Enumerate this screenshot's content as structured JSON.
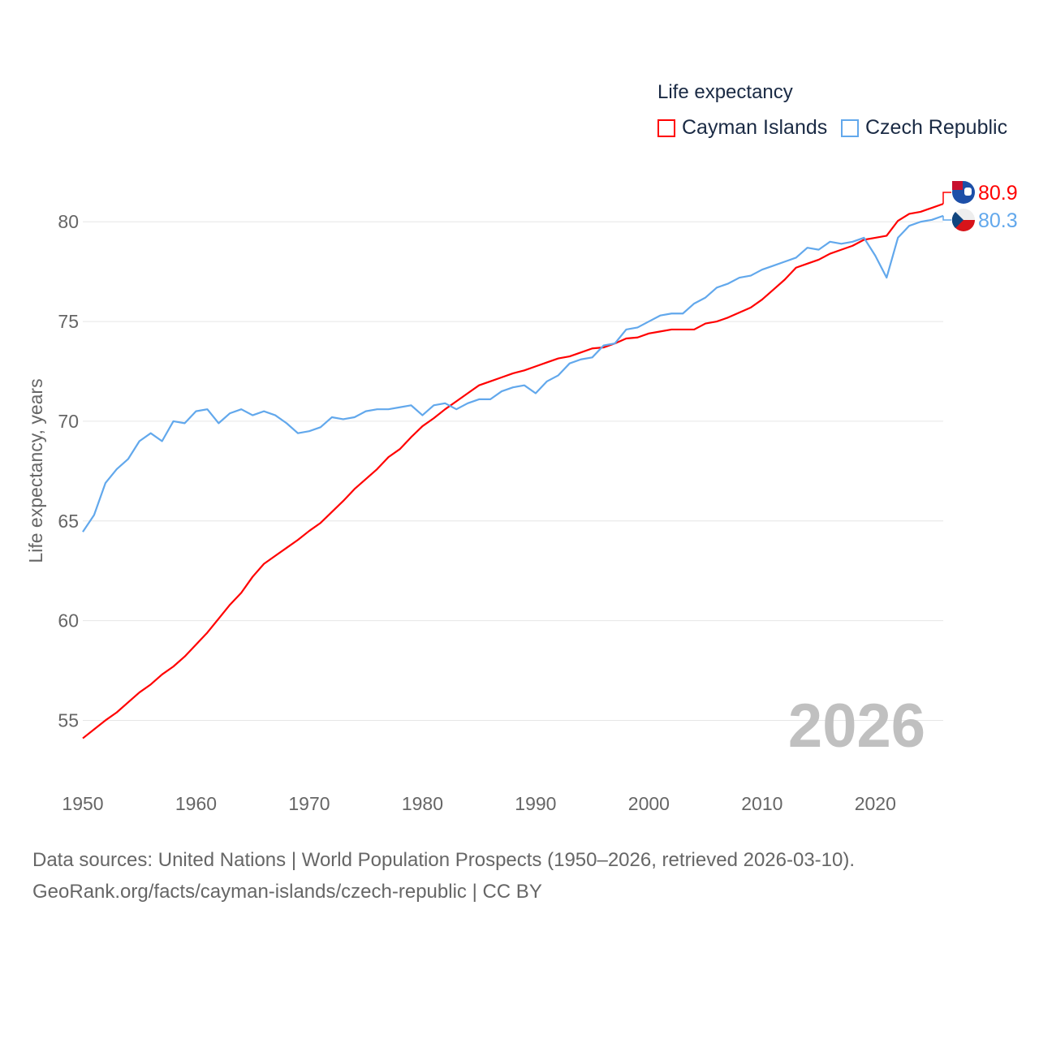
{
  "chart_data": {
    "type": "line",
    "title": "Life expectancy",
    "xlabel": "",
    "ylabel": "Life expectancy, years",
    "xlim": [
      1950,
      2026
    ],
    "ylim": [
      52.1,
      82.9
    ],
    "x_ticks": [
      "1950",
      "1960",
      "1970",
      "1980",
      "1990",
      "2000",
      "2010",
      "2020"
    ],
    "y_ticks": [
      "55",
      "60",
      "65",
      "70",
      "75",
      "80"
    ],
    "grid": true,
    "legend_position": "top-right",
    "year_watermark": "2026",
    "x": [
      1950,
      1951,
      1952,
      1953,
      1954,
      1955,
      1956,
      1957,
      1958,
      1959,
      1960,
      1961,
      1962,
      1963,
      1964,
      1965,
      1966,
      1967,
      1968,
      1969,
      1970,
      1971,
      1972,
      1973,
      1974,
      1975,
      1976,
      1977,
      1978,
      1979,
      1980,
      1981,
      1982,
      1983,
      1984,
      1985,
      1986,
      1987,
      1988,
      1989,
      1990,
      1991,
      1992,
      1993,
      1994,
      1995,
      1996,
      1997,
      1998,
      1999,
      2000,
      2001,
      2002,
      2003,
      2004,
      2005,
      2006,
      2007,
      2008,
      2009,
      2010,
      2011,
      2012,
      2013,
      2014,
      2015,
      2016,
      2017,
      2018,
      2019,
      2020,
      2021,
      2022,
      2023,
      2024,
      2025,
      2026
    ],
    "series": [
      {
        "name": "Cayman Islands",
        "color": "#ff0000",
        "end_label": "80.9",
        "values": [
          54.1,
          54.55,
          55.0,
          55.4,
          55.9,
          56.4,
          56.8,
          57.3,
          57.7,
          58.2,
          58.8,
          59.4,
          60.1,
          60.8,
          61.4,
          62.2,
          62.85,
          63.25,
          63.65,
          64.05,
          64.5,
          64.9,
          65.45,
          66.0,
          66.6,
          67.1,
          67.6,
          68.2,
          68.6,
          69.2,
          69.75,
          70.15,
          70.6,
          71.0,
          71.4,
          71.8,
          72.0,
          72.2,
          72.4,
          72.55,
          72.75,
          72.95,
          73.15,
          73.25,
          73.45,
          73.65,
          73.7,
          73.9,
          74.15,
          74.2,
          74.4,
          74.5,
          74.6,
          74.6,
          74.6,
          74.9,
          75.0,
          75.2,
          75.45,
          75.7,
          76.1,
          76.6,
          77.1,
          77.7,
          77.9,
          78.1,
          78.4,
          78.6,
          78.8,
          79.1,
          79.2,
          79.3,
          80.05,
          80.4,
          80.5,
          80.7,
          80.9
        ]
      },
      {
        "name": "Czech Republic",
        "color": "#62a8ec",
        "end_label": "80.3",
        "values": [
          64.45,
          65.3,
          66.9,
          67.6,
          68.1,
          69.0,
          69.4,
          69.0,
          70.0,
          69.9,
          70.5,
          70.6,
          69.9,
          70.4,
          70.6,
          70.3,
          70.5,
          70.3,
          69.9,
          69.4,
          69.5,
          69.7,
          70.2,
          70.1,
          70.2,
          70.5,
          70.6,
          70.6,
          70.7,
          70.8,
          70.3,
          70.8,
          70.9,
          70.6,
          70.9,
          71.1,
          71.1,
          71.5,
          71.7,
          71.8,
          71.4,
          72.0,
          72.3,
          72.9,
          73.1,
          73.2,
          73.8,
          73.9,
          74.6,
          74.7,
          75.0,
          75.3,
          75.4,
          75.4,
          75.9,
          76.2,
          76.7,
          76.9,
          77.2,
          77.3,
          77.6,
          77.8,
          78.0,
          78.2,
          78.7,
          78.6,
          79.0,
          78.9,
          79.0,
          79.2,
          78.3,
          77.2,
          79.2,
          79.8,
          80.0,
          80.1,
          80.3
        ]
      }
    ]
  },
  "source": {
    "line1": "Data sources: United Nations | World Population Prospects (1950–2026, retrieved 2026-03-10).",
    "line2": "GeoRank.org/facts/cayman-islands/czech-republic | CC BY"
  }
}
